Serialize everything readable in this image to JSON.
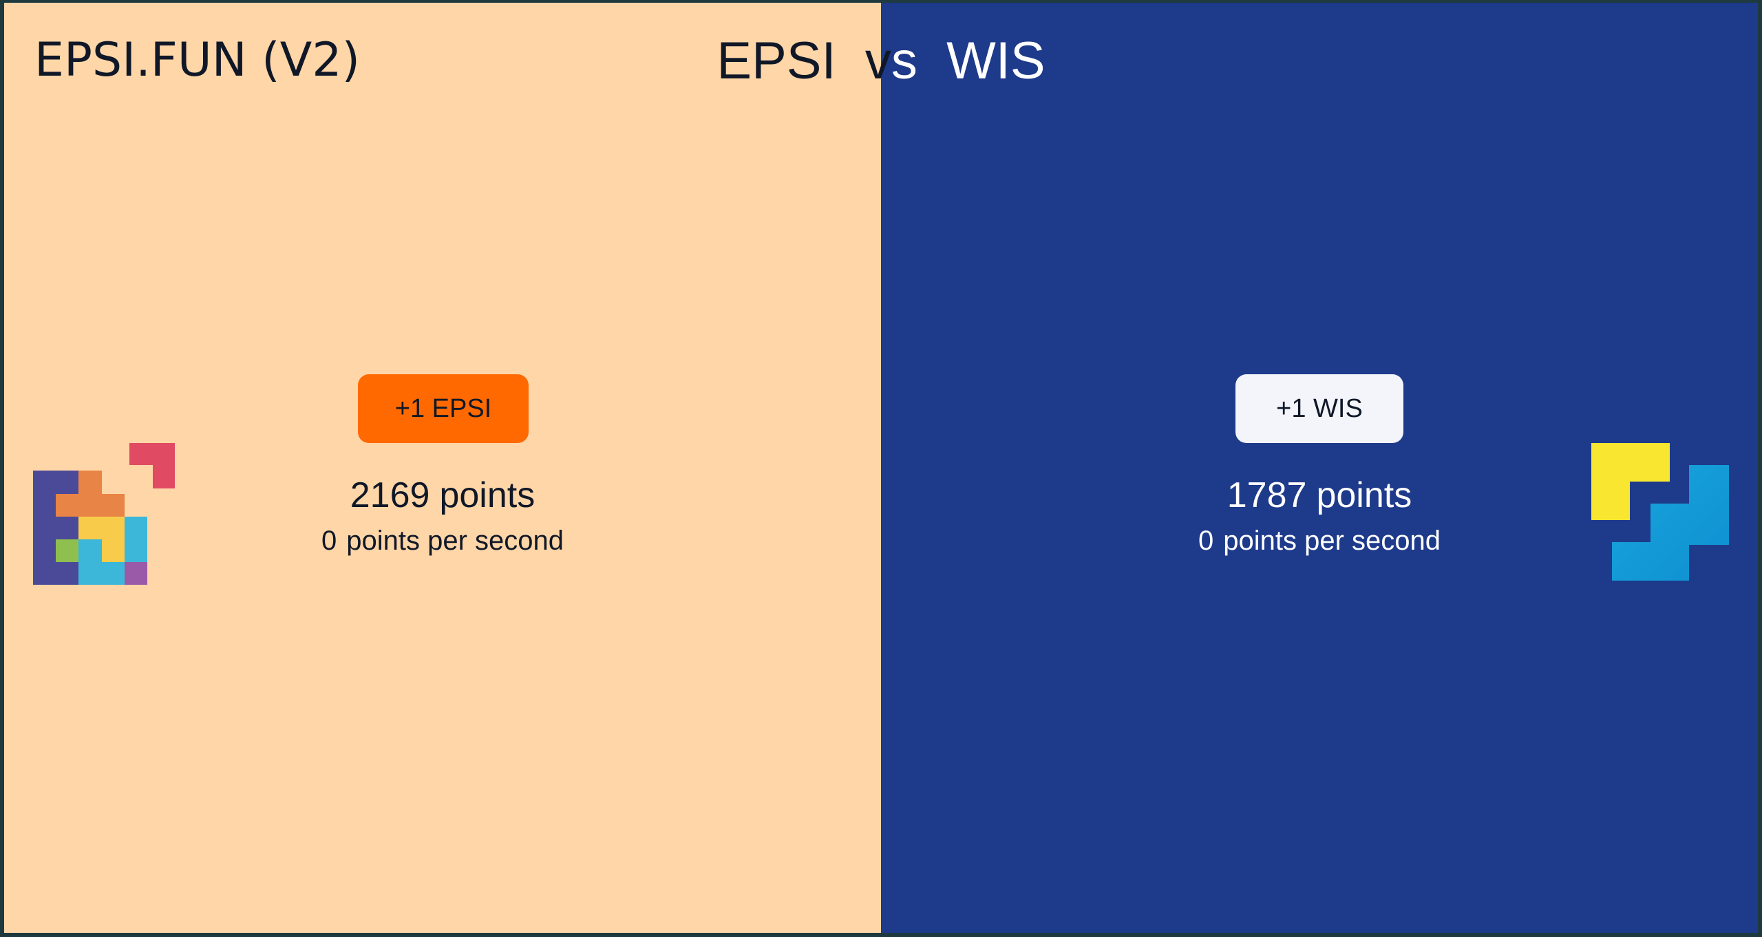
{
  "app": {
    "brand": "EPSI.FUN (V2)",
    "versus": {
      "left": "EPSI",
      "vs": "vs",
      "right": "WIS"
    }
  },
  "teams": [
    {
      "id": "epsi",
      "button_label": "+1 EPSI",
      "points_value": "2169",
      "points_unit": "points",
      "per_second_value": "0",
      "per_second_unit": "points per second",
      "logo_icon": "epsi-logo-icon",
      "panel_color": "#ffd6a7",
      "button_color": "#ff6900"
    },
    {
      "id": "wis",
      "button_label": "+1 WIS",
      "points_value": "1787",
      "points_unit": "points",
      "per_second_value": "0",
      "per_second_unit": "points per second",
      "logo_icon": "wis-logo-icon",
      "panel_color": "#1e3a8a",
      "button_color": "#f3f5fb"
    }
  ]
}
